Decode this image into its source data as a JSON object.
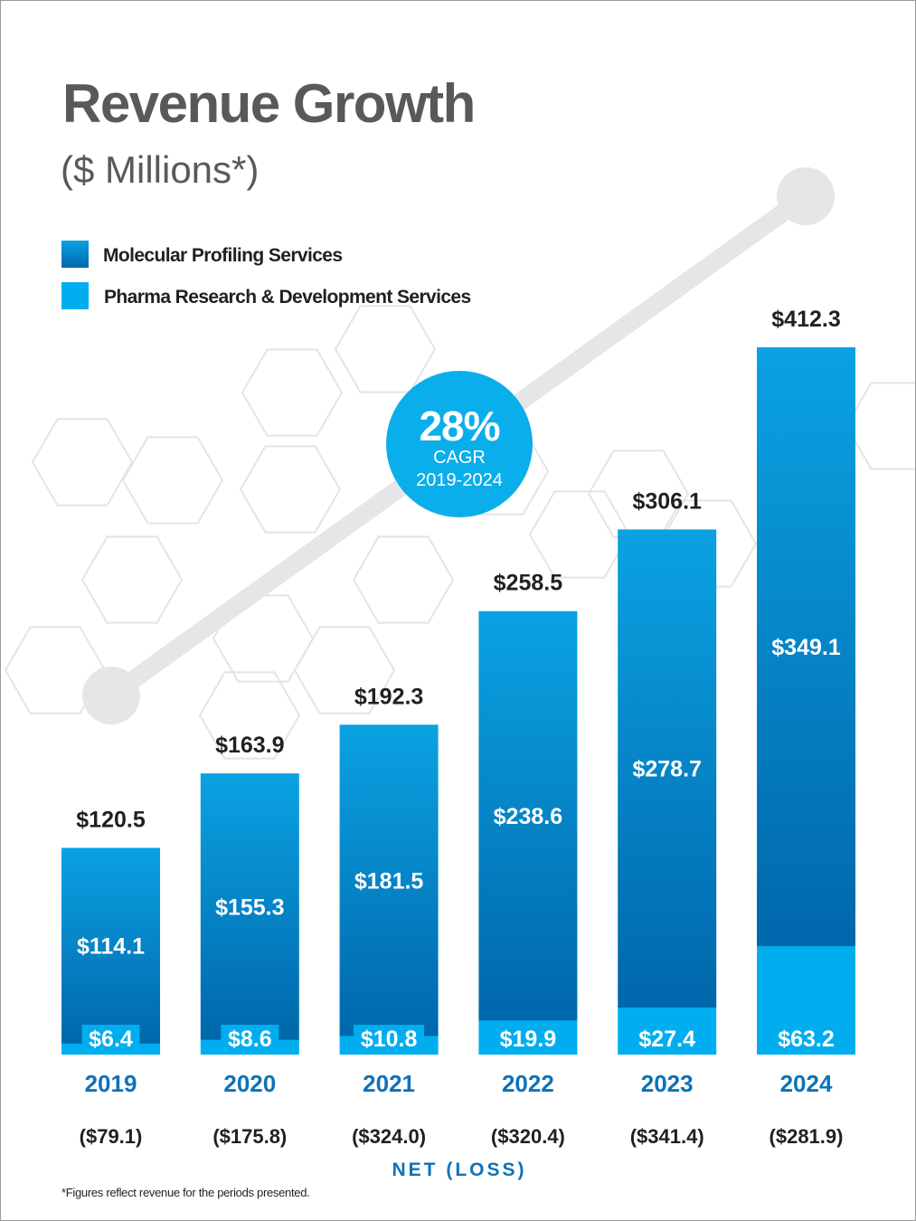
{
  "chart_data": {
    "type": "bar",
    "stacked": true,
    "title": "Revenue Growth",
    "subtitle": "($ Millions*)",
    "categories": [
      "2019",
      "2020",
      "2021",
      "2022",
      "2023",
      "2024"
    ],
    "series": [
      {
        "name": "Molecular Profiling Services",
        "color": "#0a78be",
        "values": [
          114.1,
          155.3,
          181.5,
          238.6,
          278.7,
          349.1
        ],
        "labels": [
          "$114.1",
          "$155.3",
          "$181.5",
          "$238.6",
          "$278.7",
          "$349.1"
        ]
      },
      {
        "name": "Pharma Research & Development Services",
        "color": "#00aeef",
        "values": [
          6.4,
          8.6,
          10.8,
          19.9,
          27.4,
          63.2
        ],
        "labels": [
          "$6.4",
          "$8.6",
          "$10.8",
          "$19.9",
          "$27.4",
          "$63.2"
        ]
      }
    ],
    "totals": [
      120.5,
      163.9,
      192.3,
      258.5,
      306.1,
      412.3
    ],
    "total_labels": [
      "$120.5",
      "$163.9",
      "$192.3",
      "$258.5",
      "$306.1",
      "$412.3"
    ],
    "net_loss": [
      -79.1,
      -175.8,
      -324.0,
      -320.4,
      -341.4,
      -281.9
    ],
    "net_loss_labels": [
      "($79.1)",
      "($175.8)",
      "($324.0)",
      "($320.4)",
      "($341.4)",
      "($281.9)"
    ],
    "net_loss_title": "NET (LOSS)",
    "ylim": [
      0,
      412.3
    ],
    "grid": false,
    "legend_position": "top-left"
  },
  "cagr": {
    "value": "28%",
    "label": "CAGR",
    "period": "2019-2024",
    "color": "#0aaeea"
  },
  "footnote": "*Figures reflect revenue for the periods presented."
}
